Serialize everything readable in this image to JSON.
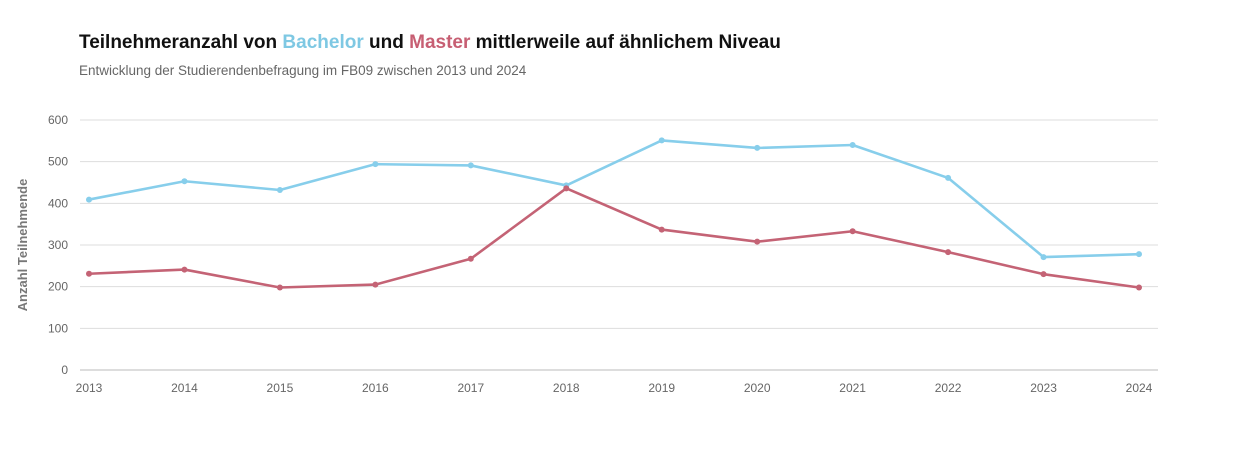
{
  "title": {
    "part1": "Teilnehmeranzahl von ",
    "bachelor": "Bachelor",
    "part2": " und ",
    "master": "Master",
    "part3": " mittlerweile auf ähnlichem Niveau"
  },
  "subtitle": "Entwicklung der Studierendenbefragung im FB09 zwischen 2013 und 2024",
  "chart_data": {
    "type": "line",
    "title": "Teilnehmeranzahl von Bachelor und Master mittlerweile auf ähnlichem Niveau",
    "subtitle": "Entwicklung der Studierendenbefragung im FB09 zwischen 2013 und 2024",
    "xlabel": "",
    "ylabel": "Anzahl Teilnehmende",
    "x": [
      "2013",
      "2014",
      "2015",
      "2016",
      "2017",
      "2018",
      "2019",
      "2020",
      "2021",
      "2022",
      "2023",
      "2024"
    ],
    "ylim": [
      0,
      600
    ],
    "yticks": [
      "0",
      "100",
      "200",
      "300",
      "400",
      "500",
      "600"
    ],
    "grid": true,
    "series": [
      {
        "name": "Bachelor",
        "color": "#87ceeb",
        "values": [
          409,
          453,
          432,
          494,
          491,
          443,
          551,
          533,
          540,
          461,
          271,
          278
        ]
      },
      {
        "name": "Master",
        "color": "#c46375",
        "values": [
          231,
          241,
          198,
          205,
          267,
          436,
          337,
          308,
          333,
          283,
          230,
          198
        ]
      }
    ]
  }
}
